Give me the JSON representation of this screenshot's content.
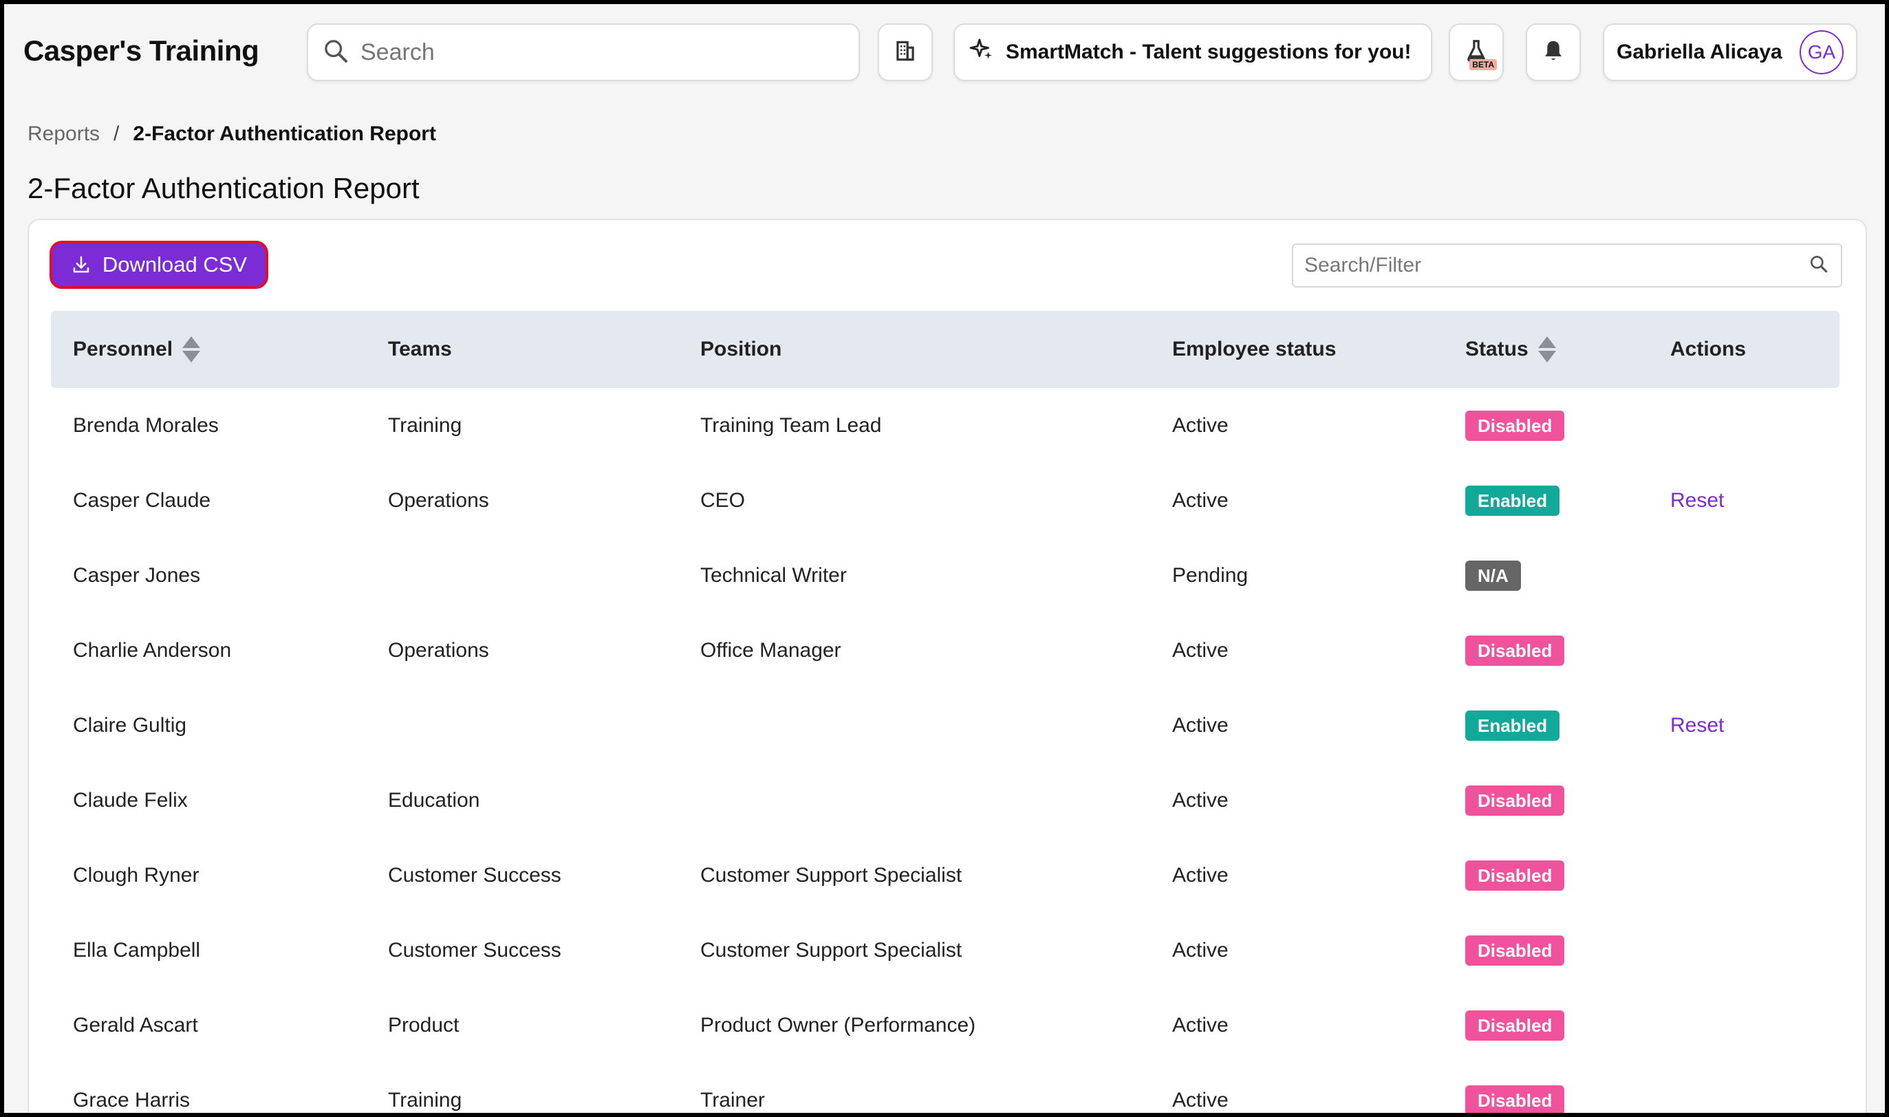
{
  "header": {
    "app_title": "Casper's Training",
    "search_placeholder": "Search",
    "smartmatch_label": "SmartMatch - Talent suggestions for you!",
    "beta_label": "BETA",
    "user_name": "Gabriella Alicaya",
    "user_initials": "GA"
  },
  "breadcrumb": {
    "parent": "Reports",
    "separator": "/",
    "current": "2-Factor Authentication Report"
  },
  "page_title": "2-Factor Authentication Report",
  "toolbar": {
    "download_label": "Download CSV",
    "filter_placeholder": "Search/Filter"
  },
  "table": {
    "columns": [
      "Personnel",
      "Teams",
      "Position",
      "Employee status",
      "Status",
      "Actions"
    ],
    "rows": [
      {
        "personnel": "Brenda Morales",
        "team": "Training",
        "position": "Training Team Lead",
        "employee_status": "Active",
        "status": "Disabled",
        "action": ""
      },
      {
        "personnel": "Casper Claude",
        "team": "Operations",
        "position": "CEO",
        "employee_status": "Active",
        "status": "Enabled",
        "action": "Reset"
      },
      {
        "personnel": "Casper Jones",
        "team": "",
        "position": "Technical Writer",
        "employee_status": "Pending",
        "status": "N/A",
        "action": ""
      },
      {
        "personnel": "Charlie Anderson",
        "team": "Operations",
        "position": "Office Manager",
        "employee_status": "Active",
        "status": "Disabled",
        "action": ""
      },
      {
        "personnel": "Claire Gultig",
        "team": "",
        "position": "",
        "employee_status": "Active",
        "status": "Enabled",
        "action": "Reset"
      },
      {
        "personnel": "Claude Felix",
        "team": "Education",
        "position": "",
        "employee_status": "Active",
        "status": "Disabled",
        "action": ""
      },
      {
        "personnel": "Clough Ryner",
        "team": "Customer Success",
        "position": "Customer Support Specialist",
        "employee_status": "Active",
        "status": "Disabled",
        "action": ""
      },
      {
        "personnel": "Ella Campbell",
        "team": "Customer Success",
        "position": "Customer Support Specialist",
        "employee_status": "Active",
        "status": "Disabled",
        "action": ""
      },
      {
        "personnel": "Gerald Ascart",
        "team": "Product",
        "position": "Product Owner (Performance)",
        "employee_status": "Active",
        "status": "Disabled",
        "action": ""
      },
      {
        "personnel": "Grace Harris",
        "team": "Training",
        "position": "Trainer",
        "employee_status": "Active",
        "status": "Disabled",
        "action": ""
      }
    ]
  },
  "colors": {
    "accent": "#7c2cd6",
    "disabled": "#f0539b",
    "enabled": "#11a99a",
    "na": "#666666",
    "header_row": "#e4e9f0"
  }
}
